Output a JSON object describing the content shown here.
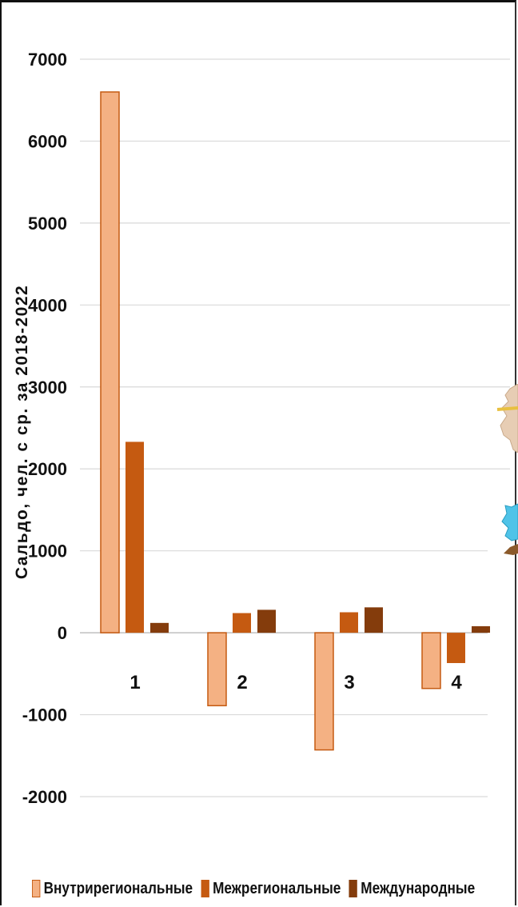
{
  "chart_data": {
    "type": "bar",
    "title": "",
    "xlabel": "",
    "ylabel": "Сальдо, чел. с ср. за 2018-2022",
    "categories": [
      "1",
      "2",
      "3",
      "4"
    ],
    "ylim": [
      -2000,
      7000
    ],
    "yticks": [
      7000,
      6000,
      5000,
      4000,
      3000,
      2000,
      1000,
      0,
      -1000,
      -2000
    ],
    "grid": true,
    "legend_position": "bottom",
    "series": [
      {
        "name": "Внутрирегиональные",
        "color": "#F4B183",
        "stroke": "#C55A11",
        "values": [
          6600,
          -890,
          -1430,
          -680
        ]
      },
      {
        "name": "Межрегиональные",
        "color": "#C55A11",
        "stroke": "#C55A11",
        "values": [
          2330,
          240,
          250,
          -370
        ]
      },
      {
        "name": "Международные",
        "color": "#843C0C",
        "stroke": "#843C0C",
        "values": [
          120,
          280,
          310,
          80
        ]
      }
    ]
  },
  "legend": {
    "items": [
      "Внутрирегиональные",
      "Межрегиональные",
      "Международные"
    ]
  }
}
